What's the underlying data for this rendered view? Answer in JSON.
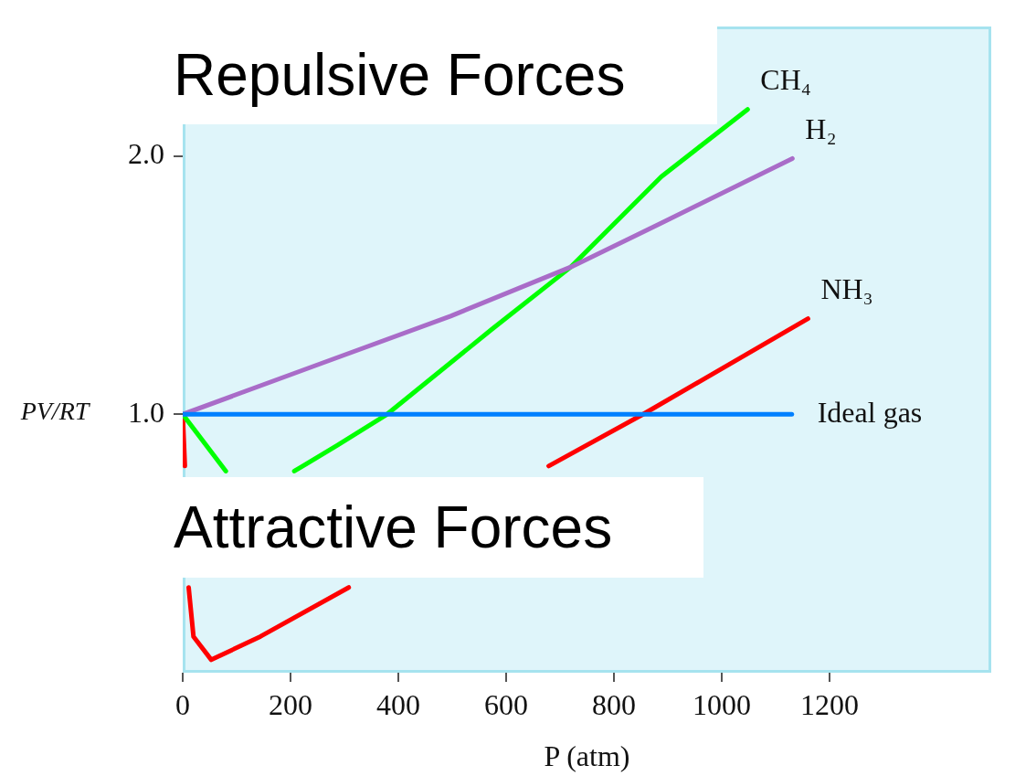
{
  "chart_data": {
    "type": "line",
    "xlabel": "P (atm)",
    "ylabel": "PV/RT",
    "annotations": [
      "Repulsive Forces",
      "Attractive Forces"
    ],
    "xlim": [
      0,
      1500
    ],
    "ylim": [
      0,
      2.5
    ],
    "xticks": [
      0,
      200,
      400,
      600,
      800,
      1000,
      1200
    ],
    "yticks": [
      {
        "value": 1,
        "label": "1.0"
      },
      {
        "value": 2,
        "label": "2.0"
      }
    ],
    "grid": false,
    "legend": false,
    "marker": "none",
    "line_style": "solid",
    "series": [
      {
        "name": "Ideal gas",
        "color": "#0080ff",
        "x": [
          0,
          1130
        ],
        "values": [
          1,
          1
        ]
      },
      {
        "name": "H₂",
        "color": "#a96cc8",
        "x": [
          0,
          261,
          497,
          720,
          888,
          1131
        ],
        "values": [
          1,
          1.2,
          1.38,
          1.57,
          1.74,
          1.99
        ]
      },
      {
        "name": "CH₄",
        "color": "#00ff00",
        "x": [
          0,
          80,
          130,
          207,
          287,
          379,
          574,
          720,
          888,
          1048
        ],
        "values": [
          1,
          0.78,
          null,
          0.78,
          0.88,
          1.0,
          1.33,
          1.57,
          1.92,
          2.18
        ]
      },
      {
        "name": "NH₃",
        "color": "#ff0000",
        "x": [
          0,
          4,
          8,
          11,
          20,
          53,
          144,
          308,
          480,
          679,
          854,
          1160
        ],
        "values": [
          1,
          0.8,
          null,
          0.33,
          0.14,
          0.05,
          0.14,
          0.33,
          null,
          0.8,
          1.0,
          1.37
        ]
      }
    ]
  }
}
